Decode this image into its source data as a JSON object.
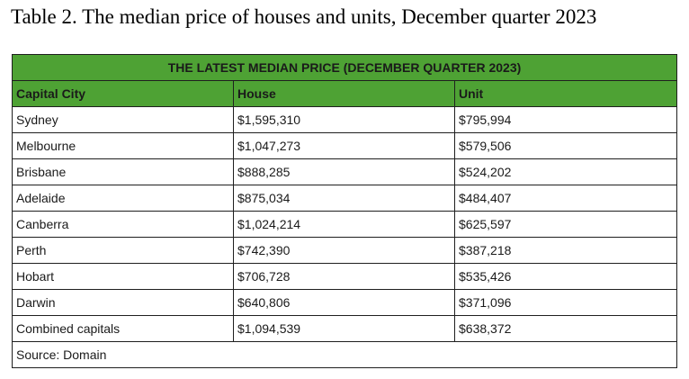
{
  "caption": "Table 2. The median price of houses and units, December quarter 2023",
  "table": {
    "banner": "THE LATEST MEDIAN PRICE (DECEMBER QUARTER 2023)",
    "headers": [
      "Capital City",
      "House",
      "Unit"
    ],
    "rows": [
      [
        "Sydney",
        "$1,595,310",
        "$795,994"
      ],
      [
        "Melbourne",
        "$1,047,273",
        "$579,506"
      ],
      [
        "Brisbane",
        "$888,285",
        "$524,202"
      ],
      [
        "Adelaide",
        "$875,034",
        "$484,407"
      ],
      [
        "Canberra",
        "$1,024,214",
        "$625,597"
      ],
      [
        "Perth",
        "$742,390",
        "$387,218"
      ],
      [
        "Hobart",
        "$706,728",
        "$535,426"
      ],
      [
        "Darwin",
        "$640,806",
        "$371,096"
      ],
      [
        "Combined capitals",
        "$1,094,539",
        "$638,372"
      ]
    ],
    "source": "Source: Domain"
  },
  "colors": {
    "header_green": "#4ea234",
    "header_text": "#ffffff",
    "border": "#1f1f1f"
  }
}
